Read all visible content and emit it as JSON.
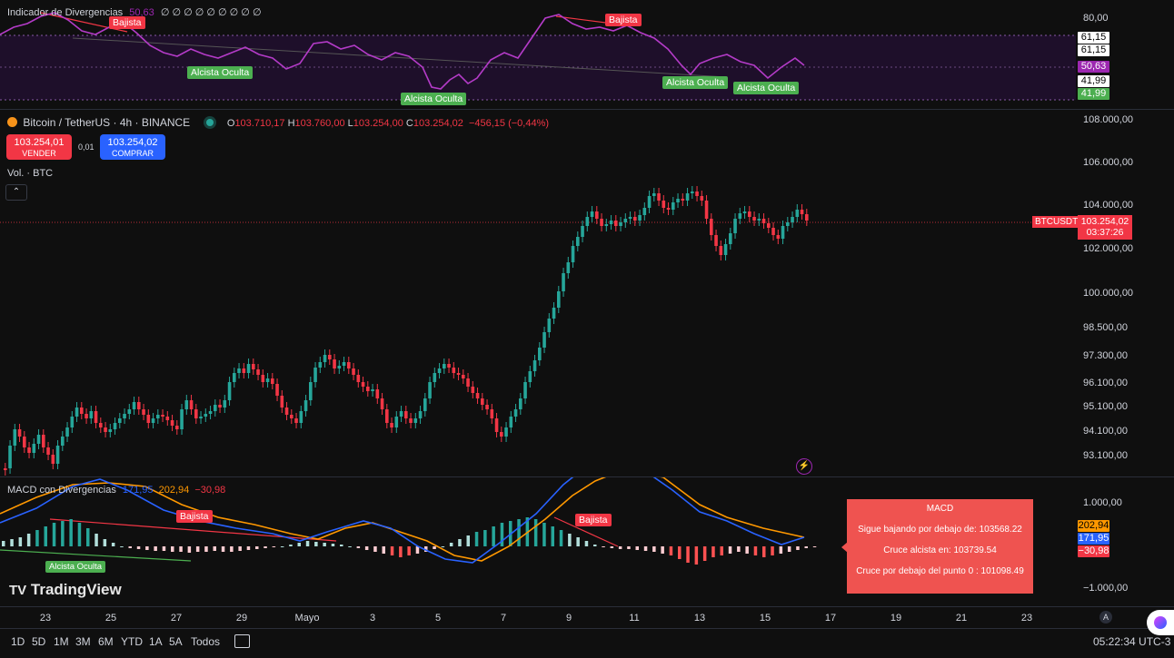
{
  "rsi": {
    "title": "Indicador de Divergencias",
    "value": "50,63",
    "zeros": "∅ ∅ ∅ ∅ ∅ ∅ ∅ ∅ ∅",
    "axis": [
      "80,00",
      "61,15",
      "41,99"
    ],
    "tags": [
      "61,15",
      "61,15",
      "50,63",
      "41,99",
      "41,99"
    ],
    "labels": [
      "Bajista",
      "Bajista",
      "Alcista Oculta",
      "Alcista Oculta",
      "Alcista Oculta",
      "Alcista Oculta"
    ]
  },
  "header": {
    "symbol": "Bitcoin / TetherUS · 4h · BINANCE",
    "o_label": "O",
    "o": "103.710,17",
    "h_label": "H",
    "h": "103.760,00",
    "l_label": "L",
    "l": "103.254,00",
    "c_label": "C",
    "c": "103.254,02",
    "change": "−456,15 (−0,44%)"
  },
  "trade": {
    "sell_price": "103.254,01",
    "sell_label": "VENDER",
    "spread": "0,01",
    "buy_price": "103.254,02",
    "buy_label": "COMPRAR"
  },
  "volume_label": "Vol. · BTC",
  "price_axis": [
    "108.000,00",
    "106.000,00",
    "104.000,00",
    "102.000,00",
    "100.000,00",
    "98.500,00",
    "97.300,00",
    "96.100,00",
    "95.100,00",
    "94.100,00",
    "93.100,00"
  ],
  "price_tag": {
    "symbol": "BTCUSDT",
    "price": "103.254,02",
    "countdown": "03:37:26"
  },
  "macd": {
    "title": "MACD con Divergencias",
    "v1": "171,95",
    "v2": "202,94",
    "v3": "−30,98",
    "axis": [
      "1.000,00",
      "−1.000,00"
    ],
    "tags": [
      "202,94",
      "171,95",
      "−30,98"
    ],
    "labels": [
      "Bajista",
      "Bajista",
      "Alcista Oculta"
    ],
    "box_title": "MACD",
    "box_lines": [
      "Sigue bajando por debajo de: 103568.22",
      "Cruce alcista en: 103739.54",
      "Cruce por debajo del punto 0 : 101098.49"
    ]
  },
  "brand": "TradingView",
  "x_axis": [
    "23",
    "25",
    "27",
    "29",
    "Mayo",
    "3",
    "5",
    "7",
    "9",
    "11",
    "13",
    "15",
    "17",
    "19",
    "21",
    "23"
  ],
  "timeframes": [
    "1D",
    "5D",
    "1M",
    "3M",
    "6M",
    "YTD",
    "1A",
    "5A",
    "Todos"
  ],
  "clock": "05:22:34 UTC-3",
  "axis_mode": "A",
  "colors": {
    "up": "#26a69a",
    "down": "#f23645",
    "rsi": "#9c27b0",
    "macd": "#2962ff",
    "signal": "#ff9800",
    "buy": "#2962ff"
  }
}
